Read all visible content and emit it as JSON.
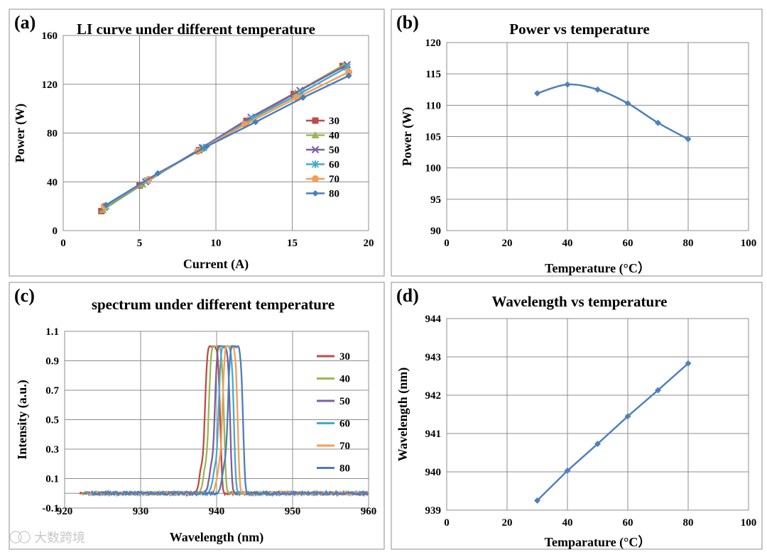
{
  "colors": {
    "s30": "#be4b48",
    "s40": "#98b954",
    "s50": "#7d5fa0",
    "s60": "#46aac5",
    "s70": "#f59d56",
    "s80": "#4a7ebb",
    "single": "#4f81bd"
  },
  "watermark": "大数跨境",
  "chart_data": [
    {
      "id": "a",
      "type": "line",
      "panel_label": "(a)",
      "title": "LI curve under different temperature",
      "xlabel": "Current (A)",
      "ylabel": "Power (W)",
      "xlim": [
        0,
        20
      ],
      "ylim": [
        0,
        160
      ],
      "xticks": [
        0,
        5,
        10,
        15,
        20
      ],
      "yticks": [
        0,
        40,
        80,
        120,
        160
      ],
      "grid": true,
      "legend": "right",
      "series": [
        {
          "name": "30",
          "color": "s30",
          "marker": "square",
          "points": [
            [
              2.5,
              16
            ],
            [
              5.0,
              37
            ],
            [
              8.9,
              66
            ],
            [
              12.0,
              90
            ],
            [
              15.1,
              112
            ],
            [
              18.3,
              135
            ]
          ]
        },
        {
          "name": "40",
          "color": "s40",
          "marker": "triangle",
          "points": [
            [
              2.6,
              17
            ],
            [
              5.2,
              38
            ],
            [
              9.0,
              67
            ],
            [
              12.1,
              91
            ],
            [
              15.2,
              113
            ],
            [
              18.4,
              136
            ]
          ]
        },
        {
          "name": "50",
          "color": "s50",
          "marker": "x",
          "points": [
            [
              2.7,
              19
            ],
            [
              5.4,
              40
            ],
            [
              9.1,
              68
            ],
            [
              12.3,
              93
            ],
            [
              15.5,
              115
            ],
            [
              18.6,
              136
            ]
          ]
        },
        {
          "name": "60",
          "color": "s60",
          "marker": "star",
          "points": [
            [
              2.8,
              20
            ],
            [
              5.5,
              41
            ],
            [
              9.2,
              68
            ],
            [
              12.4,
              92
            ],
            [
              15.6,
              113
            ],
            [
              18.6,
              134
            ]
          ]
        },
        {
          "name": "70",
          "color": "s70",
          "marker": "circle",
          "points": [
            [
              2.7,
              20
            ],
            [
              5.6,
              42
            ],
            [
              8.8,
              65
            ],
            [
              11.9,
              87
            ],
            [
              15.3,
              109
            ],
            [
              18.7,
              130
            ]
          ]
        },
        {
          "name": "80",
          "color": "s80",
          "marker": "diamond",
          "points": [
            [
              2.8,
              21
            ],
            [
              6.2,
              47
            ],
            [
              9.4,
              69
            ],
            [
              12.6,
              89
            ],
            [
              15.7,
              109
            ],
            [
              18.7,
              127
            ]
          ]
        }
      ]
    },
    {
      "id": "b",
      "type": "line",
      "panel_label": "(b)",
      "title": "Power vs temperature",
      "xlabel": "Temperature (°C）",
      "ylabel": "Power (W)",
      "xlim": [
        0,
        100
      ],
      "ylim": [
        90,
        120
      ],
      "xticks": [
        0,
        20,
        40,
        60,
        80,
        100
      ],
      "yticks": [
        90,
        95,
        100,
        105,
        110,
        115,
        120
      ],
      "grid": true,
      "series": [
        {
          "name": "Power",
          "color": "single",
          "marker": "diamond",
          "points": [
            [
              30,
              111.9
            ],
            [
              40,
              113.3
            ],
            [
              50,
              112.5
            ],
            [
              60,
              110.3
            ],
            [
              70,
              107.2
            ],
            [
              80,
              104.6
            ]
          ]
        }
      ]
    },
    {
      "id": "c",
      "type": "line",
      "panel_label": "(c)",
      "title": "spectrum under different temperature",
      "xlabel": "Wavelength (nm)",
      "ylabel": "Intensity (a.u.)",
      "xlim": [
        920,
        960
      ],
      "ylim": [
        -0.1,
        1.1
      ],
      "xticks": [
        920,
        930,
        940,
        950,
        960
      ],
      "yticks": [
        -0.1,
        0.1,
        0.3,
        0.5,
        0.7,
        0.9,
        1.1
      ],
      "ytick_labels": [
        "-0.1",
        "0.1",
        "0.3",
        "0.5",
        "0.7",
        "0.9",
        "1.1"
      ],
      "grid": true,
      "legend": "right",
      "series": [
        {
          "name": "30",
          "color": "s30",
          "center": 939.5
        },
        {
          "name": "40",
          "color": "s40",
          "center": 940.0
        },
        {
          "name": "50",
          "color": "s50",
          "center": 940.8
        },
        {
          "name": "60",
          "color": "s60",
          "center": 941.3
        },
        {
          "name": "70",
          "color": "s70",
          "center": 941.8
        },
        {
          "name": "80",
          "color": "s80",
          "center": 942.5
        }
      ]
    },
    {
      "id": "d",
      "type": "line",
      "panel_label": "(d)",
      "title": "Wavelength vs temperature",
      "xlabel": "Temparature (°C）",
      "ylabel": "Wavelength (nm)",
      "xlim": [
        0,
        100
      ],
      "ylim": [
        939,
        944
      ],
      "xticks": [
        0,
        20,
        40,
        60,
        80,
        100
      ],
      "yticks": [
        939,
        940,
        941,
        942,
        943,
        944
      ],
      "grid": true,
      "series": [
        {
          "name": "Wavelength",
          "color": "single",
          "marker": "diamond",
          "points": [
            [
              30,
              939.25
            ],
            [
              40,
              940.03
            ],
            [
              50,
              940.73
            ],
            [
              60,
              941.45
            ],
            [
              70,
              942.13
            ],
            [
              80,
              942.83
            ]
          ]
        }
      ]
    }
  ]
}
